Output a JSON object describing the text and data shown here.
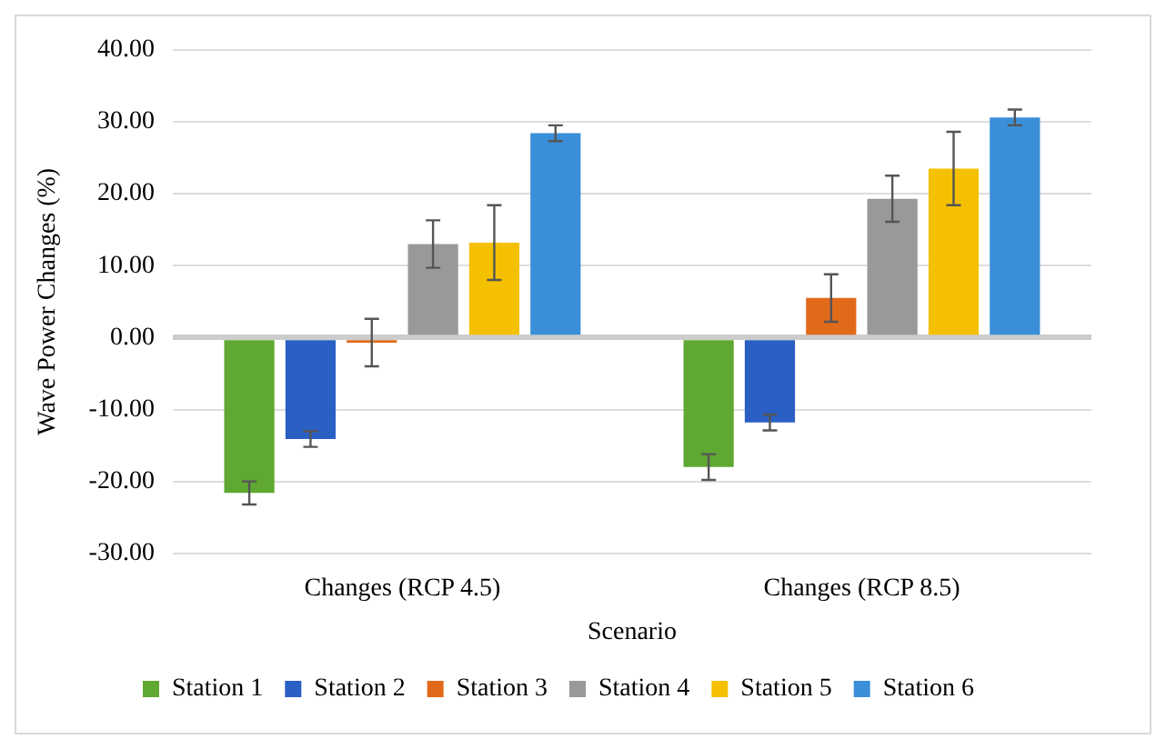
{
  "chart_data": {
    "type": "bar",
    "xlabel": "Scenario",
    "ylabel": "Wave Power Changes (%)",
    "categories": [
      "Changes (RCP 4.5)",
      "Changes (RCP 8.5)"
    ],
    "series": [
      {
        "name": "Station 1",
        "color": "#5fa832",
        "values": [
          -21.6,
          -18.0
        ],
        "errors": [
          1.6,
          1.8
        ]
      },
      {
        "name": "Station 2",
        "color": "#2a5fc4",
        "values": [
          -14.1,
          -11.8
        ],
        "errors": [
          1.1,
          1.1
        ]
      },
      {
        "name": "Station 3",
        "color": "#e06a1a",
        "values": [
          -0.7,
          5.5
        ],
        "errors": [
          3.3,
          3.3
        ]
      },
      {
        "name": "Station 4",
        "color": "#999999",
        "values": [
          13.0,
          19.3
        ],
        "errors": [
          3.3,
          3.2
        ]
      },
      {
        "name": "Station 5",
        "color": "#f5c000",
        "values": [
          13.2,
          23.5
        ],
        "errors": [
          5.2,
          5.1
        ]
      },
      {
        "name": "Station 6",
        "color": "#3a8fd8",
        "values": [
          28.4,
          30.6
        ],
        "errors": [
          1.1,
          1.1
        ]
      }
    ],
    "ylim": [
      -30,
      40
    ],
    "yticks": [
      {
        "value": -30,
        "label": "-30.00"
      },
      {
        "value": -20,
        "label": "-20.00"
      },
      {
        "value": -10,
        "label": "-10.00"
      },
      {
        "value": 0,
        "label": "0.00"
      },
      {
        "value": 10,
        "label": "10.00"
      },
      {
        "value": 20,
        "label": "20.00"
      },
      {
        "value": 30,
        "label": "30.00"
      },
      {
        "value": 40,
        "label": "40.00"
      }
    ],
    "grid": "y",
    "legend": "bottom"
  }
}
